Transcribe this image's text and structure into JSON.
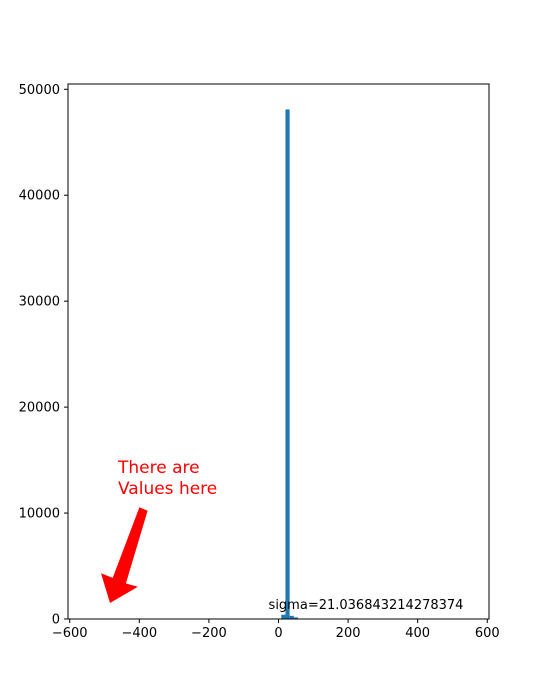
{
  "chart_data": {
    "type": "bar",
    "subtype": "histogram",
    "xlim": [
      -605,
      605
    ],
    "ylim": [
      0,
      50500
    ],
    "xticks": [
      -600,
      -400,
      -200,
      0,
      200,
      400,
      600
    ],
    "yticks": [
      0,
      10000,
      20000,
      30000,
      40000,
      50000
    ],
    "xtick_labels": [
      "−600",
      "−400",
      "−200",
      "0",
      "200",
      "400",
      "600"
    ],
    "ytick_labels": [
      "0",
      "10000",
      "20000",
      "30000",
      "40000",
      "50000"
    ],
    "bins": [
      {
        "x0": 8,
        "x1": 20,
        "value": 400
      },
      {
        "x0": 20,
        "x1": 32,
        "value": 48100
      },
      {
        "x0": 32,
        "x1": 44,
        "value": 300
      },
      {
        "x0": 44,
        "x1": 56,
        "value": 150
      }
    ],
    "bar_color": "#1f77b4",
    "annotations": [
      {
        "text": "sigma=21.036843214278374",
        "color": "#000000"
      },
      {
        "text": "There are\nValues here",
        "color": "#ff0000"
      }
    ],
    "grid": false
  }
}
